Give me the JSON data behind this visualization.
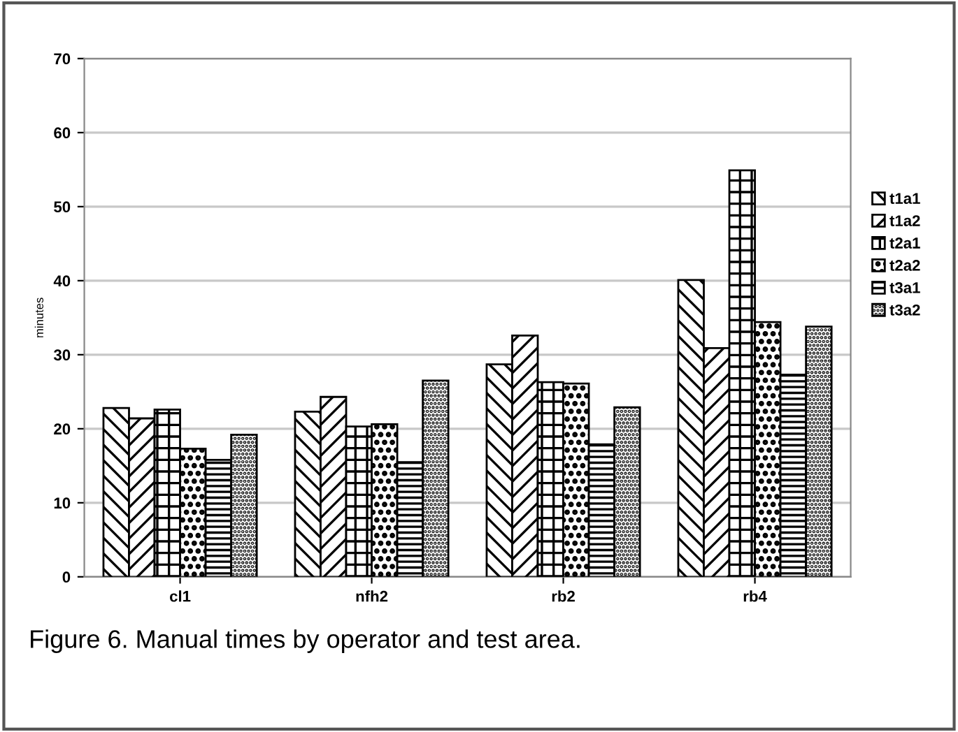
{
  "chart_data": {
    "type": "bar",
    "ylabel": "minutes",
    "categories": [
      "cl1",
      "nfh2",
      "rb2",
      "rb4"
    ],
    "series": [
      {
        "name": "t1a1",
        "color": "#000000",
        "values": [
          22.8,
          22.3,
          28.7,
          40.1
        ]
      },
      {
        "name": "t1a2",
        "color": "#000000",
        "values": [
          21.4,
          24.3,
          32.6,
          30.9
        ]
      },
      {
        "name": "t2a1",
        "color": "#000000",
        "values": [
          22.6,
          20.3,
          26.3,
          54.9
        ]
      },
      {
        "name": "t2a2",
        "color": "#000000",
        "values": [
          17.3,
          20.6,
          26.1,
          34.4
        ]
      },
      {
        "name": "t3a1",
        "color": "#000000",
        "values": [
          15.8,
          15.5,
          17.9,
          27.3
        ]
      },
      {
        "name": "t3a2",
        "color": "#000000",
        "values": [
          19.2,
          26.5,
          22.9,
          33.8
        ]
      }
    ],
    "ylim": [
      0,
      70
    ],
    "yticks": [
      0,
      10,
      20,
      30,
      40,
      50,
      60,
      70
    ],
    "grid": "y",
    "legend": "right",
    "annotations": [
      "Figure 6. Manual times by operator and test area."
    ]
  }
}
